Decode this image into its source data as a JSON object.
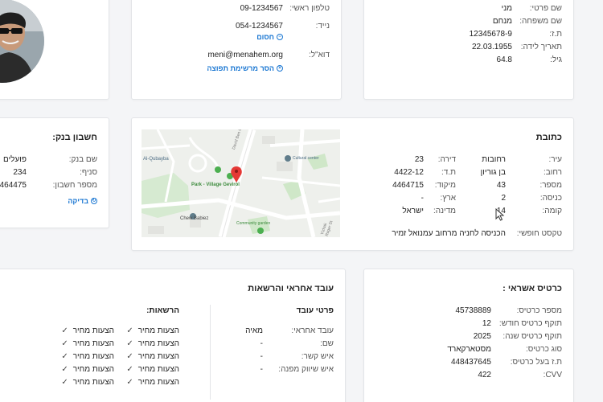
{
  "personal": {
    "first_name_label": "שם פרטי:",
    "first_name": "מני",
    "last_name_label": "שם משפחה:",
    "last_name": "מנחם",
    "id_label": "ת.ז:",
    "id": "12345678-9",
    "birth_label": "תאריך לידה:",
    "birth": "22.03.1955",
    "age_label": "גיל:",
    "age": "64.8"
  },
  "contact": {
    "phone_label": "טלפון ראשי:",
    "phone": "09-1234567",
    "mobile_label": "נייד:",
    "mobile": "054-1234567",
    "block_label": "חסום",
    "email_label": "דוא\"ל:",
    "email": "meni@menahem.org",
    "remove_label": "הסר מרשימת תפוצה"
  },
  "address": {
    "title": "כתובת",
    "city_label": "עיר:",
    "city": "רחובות",
    "street_label": "רחוב:",
    "street": "בן גוריון",
    "number_label": "מספר:",
    "number": "43",
    "entrance_label": "כניסה:",
    "entrance": "2",
    "floor_label": "קומה:",
    "floor": "14",
    "apartment_label": "דירה:",
    "apartment": "23",
    "pobox_label": "ת.ד:",
    "pobox": "4422-12",
    "zip_label": "מיקוד:",
    "zip": "4464715",
    "country_label": "ארץ:",
    "country": "-",
    "state_label": "מדינה:",
    "state": "ישראל",
    "free_text_label": "טקסט חופשי:",
    "free_text": "הכניסה לחניה מרחוב עמנואל זמיר"
  },
  "map": {
    "labels": {
      "al_qubayba": "Al-Qubayba",
      "park": "Park - Village Gevirol",
      "cultural": "Cultural center",
      "chew_babiez": "Chew Babiez",
      "community": "Community garden",
      "street1": "David Ben Gurion",
      "street2": "Yizhak Rager St"
    }
  },
  "bank": {
    "title": "חשבון בנק:",
    "bank_label": "שם בנק:",
    "bank": "פועלים",
    "branch_label": "סניף:",
    "branch": "234",
    "account_label": "מספר חשבון:",
    "account": "464475",
    "check_label": "בדיקה"
  },
  "credit": {
    "title": "כרטיס אשראי :",
    "number_label": "מספר כרטיס:",
    "number": "45738889",
    "month_label": "תוקף כרטיס חודש:",
    "month": "12",
    "year_label": "תוקף כרטיס שנה:",
    "year": "2025",
    "type_label": "סוג כרטיס:",
    "type": "מסטארקארד",
    "owner_id_label": "ת.ז בעל כרטיס:",
    "owner_id": "448437645",
    "cvv_label": "CVV:",
    "cvv": "422"
  },
  "worker": {
    "title": "עובד אחראי והרשאות",
    "details_title": "פרטי עובד",
    "responsible_label": "עובד אחראי:",
    "responsible": "מאיה",
    "name_label": "שם:",
    "name": "-",
    "contact_label": "איש קשר:",
    "contact": "-",
    "marketing_label": "איש שיווק מפנה:",
    "marketing": "-",
    "permissions_title": "הרשאות:",
    "perm_label": "הצעות מחיר"
  }
}
